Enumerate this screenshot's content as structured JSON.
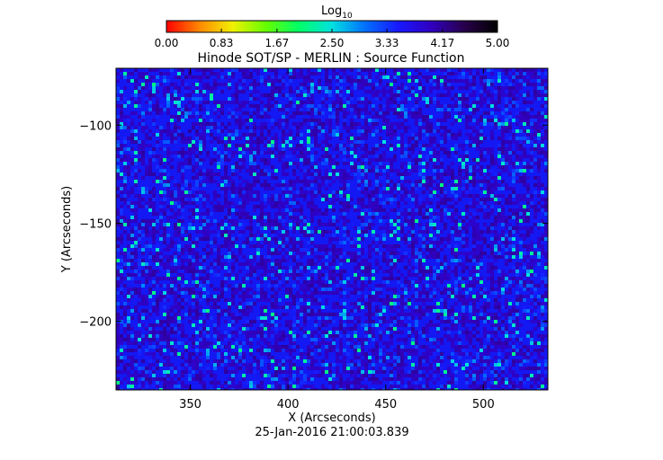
{
  "colorbar": {
    "label": "Log",
    "label_subscript": "10",
    "tick_labels": [
      "0.00",
      "0.83",
      "1.67",
      "2.50",
      "3.33",
      "4.17",
      "5.00"
    ],
    "range": [
      0,
      5
    ],
    "colormap_stops": [
      "#ff0000",
      "#ff8800",
      "#f0f000",
      "#66ff00",
      "#00ff66",
      "#00e0e0",
      "#0070ff",
      "#1818ff",
      "#3000c0",
      "#28004a",
      "#000000"
    ]
  },
  "chart_data": {
    "type": "heatmap",
    "title": "Hinode SOT/SP - MERLIN : Source Function",
    "xlabel": "X (Arcseconds)",
    "ylabel": "Y (Arcseconds)",
    "xlim": [
      312,
      533
    ],
    "ylim": [
      -235,
      -71
    ],
    "x_ticks": [
      350,
      400,
      450,
      500
    ],
    "y_ticks": [
      -100,
      -150,
      -200
    ],
    "x_tick_labels": [
      "350",
      "400",
      "450",
      "500"
    ],
    "y_tick_labels": [
      "−100",
      "−150",
      "−200"
    ],
    "value_range": [
      0,
      5
    ],
    "typical_value": 4.0,
    "grid": false
  },
  "footer": {
    "timestamp": "25-Jan-2016 21:00:03.839"
  }
}
